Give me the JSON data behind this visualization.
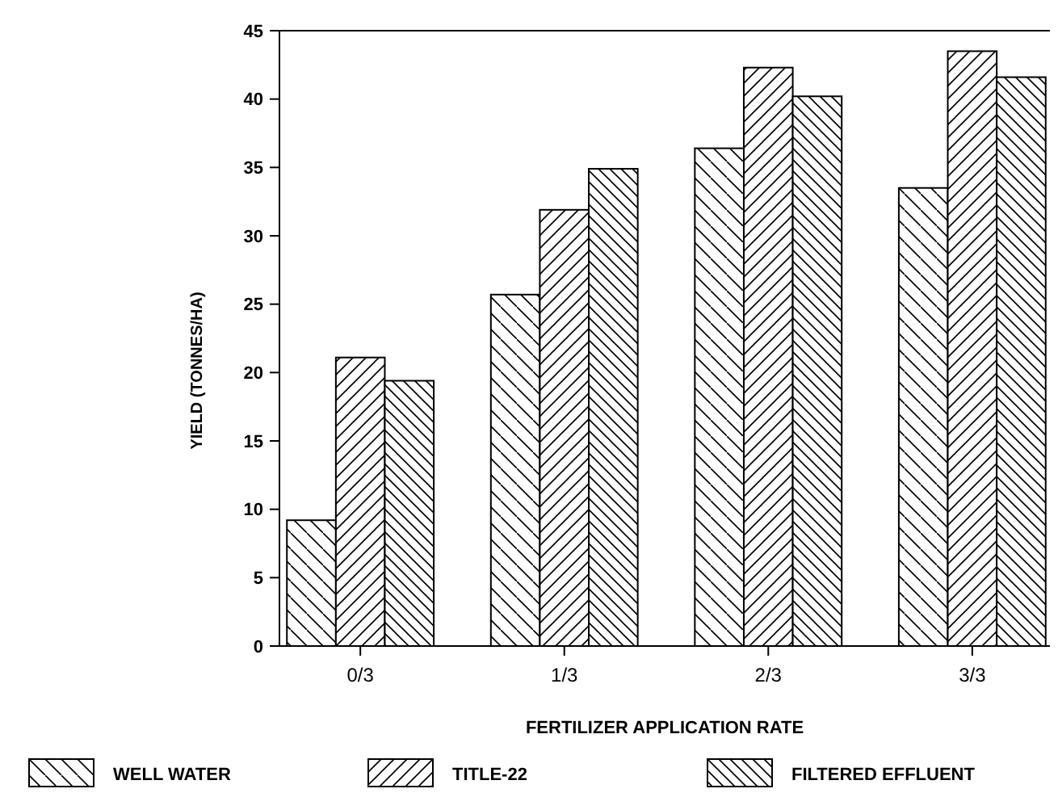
{
  "chart_data": {
    "type": "bar",
    "xlabel": "FERTILIZER APPLICATION RATE",
    "ylabel": "YIELD  (TONNES/HA)",
    "categories": [
      "0/3",
      "1/3",
      "2/3",
      "3/3"
    ],
    "series": [
      {
        "name": "WELL WATER",
        "color": "#000000",
        "values": [
          9.2,
          25.7,
          36.4,
          33.5
        ]
      },
      {
        "name": "TITLE-22",
        "color": "#000000",
        "values": [
          21.1,
          31.9,
          42.3,
          43.5
        ]
      },
      {
        "name": "FILTERED EFFLUENT",
        "color": "#000000",
        "values": [
          19.4,
          34.9,
          40.2,
          41.6
        ]
      }
    ],
    "ylim": [
      0,
      45
    ],
    "yticks": [
      0,
      5,
      10,
      15,
      20,
      25,
      30,
      35,
      40,
      45
    ],
    "grid": false,
    "legend": "bottom"
  }
}
